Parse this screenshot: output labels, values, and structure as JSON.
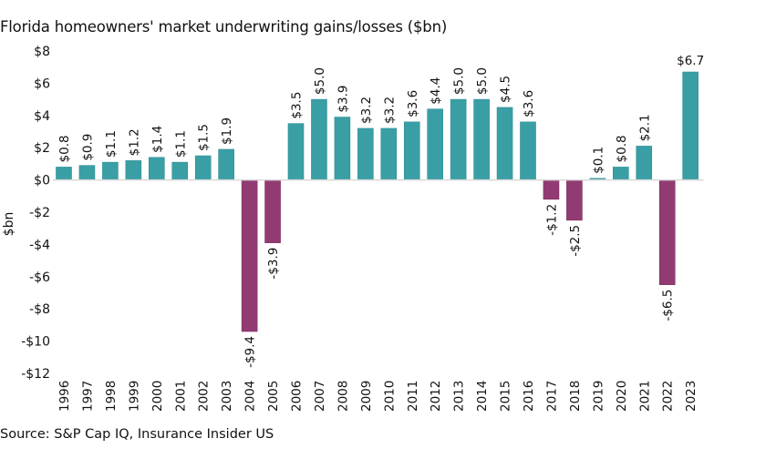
{
  "chart_data": {
    "type": "bar",
    "title": "Florida homeowners' market underwriting gains/losses ($bn)",
    "source": "Source: S&P Cap IQ, Insurance Insider US",
    "xlabel": "",
    "ylabel": "$bn",
    "ylim": [
      -12,
      8
    ],
    "yticks": [
      8,
      6,
      4,
      2,
      0,
      -2,
      -4,
      -6,
      -8,
      -10,
      -12
    ],
    "ytick_labels": [
      "$8",
      "$6",
      "$4",
      "$2",
      "$0",
      "-$2",
      "-$4",
      "-$6",
      "-$8",
      "-$10",
      "-$12"
    ],
    "grid": false,
    "legend": "none",
    "colors": {
      "positive": "#3a9fa5",
      "negative": "#923b73",
      "zero_line": "#d9d9d9"
    },
    "categories": [
      "1996",
      "1997",
      "1998",
      "1999",
      "2000",
      "2001",
      "2002",
      "2003",
      "2004",
      "2005",
      "2006",
      "2007",
      "2008",
      "2009",
      "2010",
      "2011",
      "2012",
      "2013",
      "2014",
      "2015",
      "2016",
      "2017",
      "2018",
      "2019",
      "2020",
      "2021",
      "2022",
      "2023"
    ],
    "values": [
      0.8,
      0.9,
      1.1,
      1.2,
      1.4,
      1.1,
      1.5,
      1.9,
      -9.4,
      -3.9,
      3.5,
      5.0,
      3.9,
      3.2,
      3.2,
      3.6,
      4.4,
      5.0,
      5.0,
      4.5,
      3.6,
      -1.2,
      -2.5,
      0.1,
      0.8,
      2.1,
      -6.5,
      6.7
    ],
    "data_labels": [
      "$0.8",
      "$0.9",
      "$1.1",
      "$1.2",
      "$1.4",
      "$1.1",
      "$1.5",
      "$1.9",
      "-$9.4",
      "-$3.9",
      "$3.5",
      "$5.0",
      "$3.9",
      "$3.2",
      "$3.2",
      "$3.6",
      "$4.4",
      "$5.0",
      "$5.0",
      "$4.5",
      "$3.6",
      "-$1.2",
      "-$2.5",
      "$0.1",
      "$0.8",
      "$2.1",
      "-$6.5",
      "$6.7"
    ],
    "data_label_orientation": [
      "vertical",
      "vertical",
      "vertical",
      "vertical",
      "vertical",
      "vertical",
      "vertical",
      "vertical",
      "vertical",
      "vertical",
      "vertical",
      "vertical",
      "vertical",
      "vertical",
      "vertical",
      "vertical",
      "vertical",
      "vertical",
      "vertical",
      "vertical",
      "vertical",
      "vertical",
      "vertical",
      "vertical",
      "vertical",
      "vertical",
      "vertical",
      "horizontal"
    ]
  }
}
